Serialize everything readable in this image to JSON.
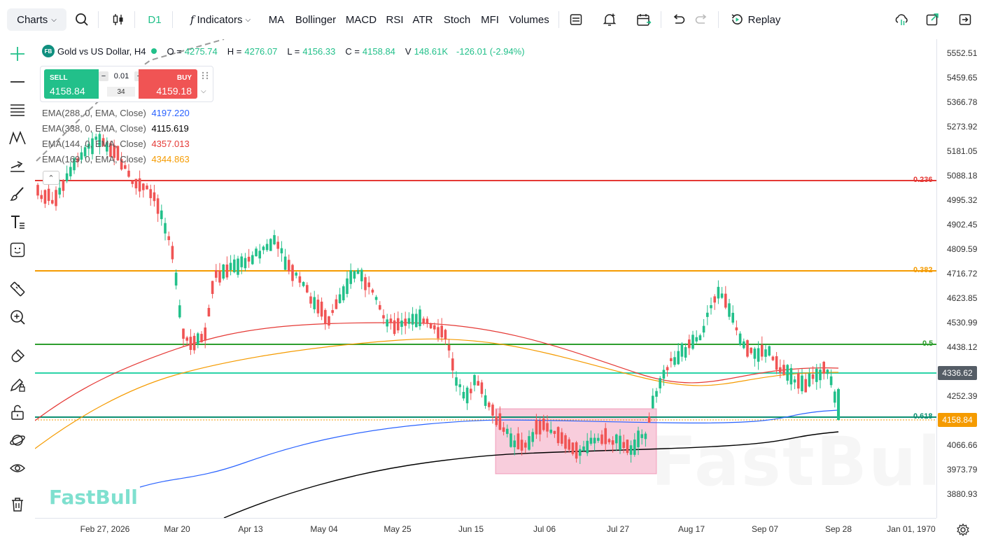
{
  "toolbar": {
    "charts_label": "Charts",
    "interval": "D1",
    "indicators_label": "Indicators",
    "indicator_buttons": [
      "MA",
      "Bollinger",
      "MACD",
      "RSI",
      "ATR",
      "Stoch",
      "MFI",
      "Volumes"
    ],
    "replay_label": "Replay"
  },
  "symbol": {
    "badge": "FB",
    "title": "Gold vs US Dollar, H4",
    "o_label": "O =",
    "o": "4275.74",
    "h_label": "H =",
    "h": "4276.07",
    "l_label": "L =",
    "l": "4156.33",
    "c_label": "C =",
    "c": "4158.84",
    "v_label": "V",
    "v": "148.61K",
    "change": "-126.01 (-2.94%)"
  },
  "trade_panel": {
    "sell_label": "SELL",
    "sell_price": "4158.84",
    "buy_label": "BUY",
    "buy_price": "4159.18",
    "lot": "0.01",
    "spread": "34",
    "minus": "−",
    "plus": "+"
  },
  "emas": [
    {
      "label": "EMA(288, 0, EMA, Close)",
      "value": "4197.220",
      "color": "#2962ff"
    },
    {
      "label": "EMA(338, 0, EMA, Close)",
      "value": "4115.619",
      "color": "#000000"
    },
    {
      "label": "EMA(144, 0, EMA, Close)",
      "value": "4357.013",
      "color": "#e53935"
    },
    {
      "label": "EMA(169, 0, EMA, Close)",
      "value": "4344.863",
      "color": "#f59b00"
    }
  ],
  "price_axis": [
    "5552.51",
    "5459.65",
    "5366.78",
    "5273.92",
    "5181.05",
    "5088.18",
    "4995.32",
    "4902.45",
    "4809.59",
    "4716.72",
    "4623.85",
    "4530.99",
    "4438.12",
    "4252.39",
    "4066.66",
    "3973.79",
    "3880.93"
  ],
  "price_tags": {
    "horizontal_line": "4336.62",
    "last_price": "4158.84"
  },
  "time_axis": [
    "Feb 27, 2026",
    "Mar 20",
    "Apr 13",
    "May 04",
    "May 25",
    "Jun 15",
    "Jul 06",
    "Jul 27",
    "Aug 17",
    "Sep 07",
    "Sep 28",
    "Jan 01, 1970"
  ],
  "fib_levels": [
    {
      "label": "0.236",
      "color": "#e53935"
    },
    {
      "label": "0.382",
      "color": "#f59b00"
    },
    {
      "label": "0.5",
      "color": "#2e9e2e"
    },
    {
      "label": "0.618",
      "color": "#0c8f70"
    }
  ],
  "watermark": "FastBull",
  "colors": {
    "up": "#22c08a",
    "down": "#f05454",
    "accent": "#22c08a"
  }
}
